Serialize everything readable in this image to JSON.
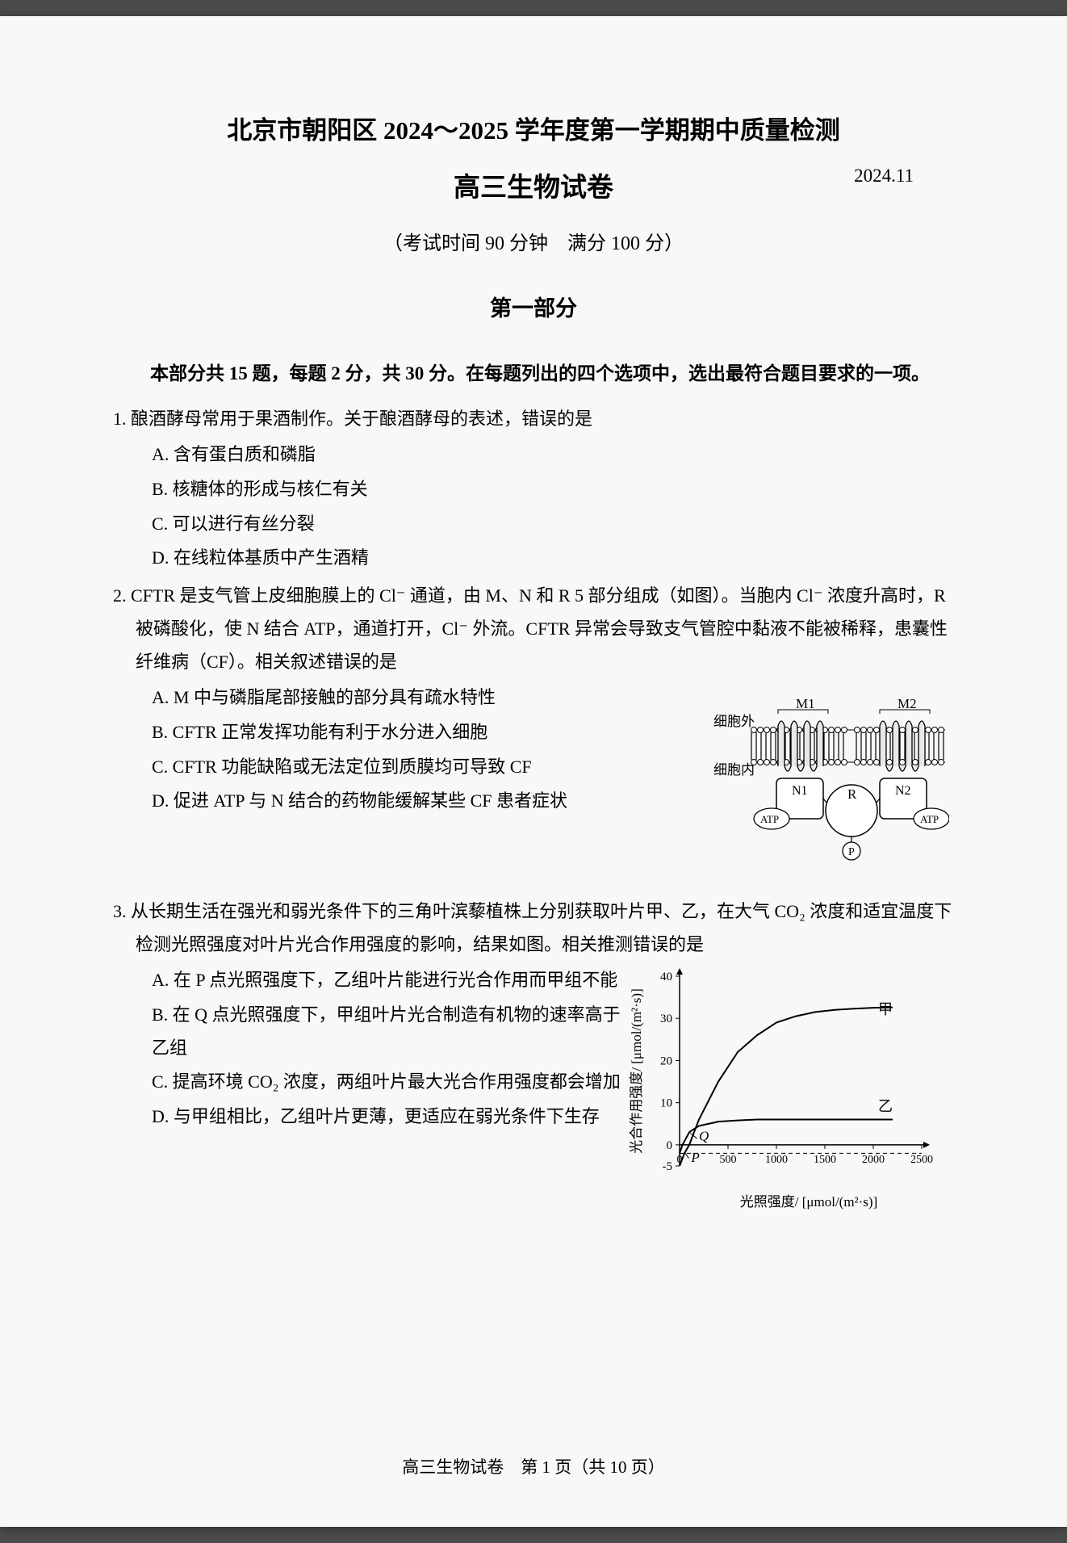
{
  "header": {
    "title": "北京市朝阳区 2024～2025 学年度第一学期期中质量检测",
    "subtitle": "高三生物试卷",
    "date": "2024.11",
    "exam_info": "（考试时间 90 分钟　满分 100 分）",
    "section": "第一部分"
  },
  "instructions": "本部分共 15 题，每题 2 分，共 30 分。在每题列出的四个选项中，选出最符合题目要求的一项。",
  "q1": {
    "num": "1.",
    "text": "酿酒酵母常用于果酒制作。关于酿酒酵母的表述，错误的是",
    "A": "A. 含有蛋白质和磷脂",
    "B": "B. 核糖体的形成与核仁有关",
    "C": "C. 可以进行有丝分裂",
    "D": "D. 在线粒体基质中产生酒精"
  },
  "q2": {
    "num": "2.",
    "text": "CFTR 是支气管上皮细胞膜上的 Cl⁻ 通道，由 M、N 和 R 5 部分组成（如图）。当胞内 Cl⁻ 浓度升高时，R 被磷酸化，使 N 结合 ATP，通道打开，Cl⁻ 外流。CFTR 异常会导致支气管腔中黏液不能被稀释，患囊性纤维病（CF）。相关叙述错误的是",
    "A": "A. M 中与磷脂尾部接触的部分具有疏水特性",
    "B": "B. CFTR 正常发挥功能有利于水分进入细胞",
    "C": "C. CFTR 功能缺陷或无法定位到质膜均可导致 CF",
    "D": "D. 促进 ATP 与 N 结合的药物能缓解某些 CF 患者症状",
    "diagram": {
      "label_out": "细胞外",
      "label_in": "细胞内",
      "M1": "M1",
      "M2": "M2",
      "N1": "N1",
      "N2": "N2",
      "R": "R",
      "ATP": "ATP",
      "P": "P",
      "membrane_color": "#000000",
      "box_color": "#ffffff"
    }
  },
  "q3": {
    "num": "3.",
    "intro": "从长期生活在强光和弱光条件下的三角叶滨藜植株上分别获取叶片甲、乙，在大气 CO₂ 浓度和适宜温度下检测光照强度对叶片光合作用强度的影响，结果如图。相关推测错误的是",
    "A": "A. 在 P 点光照强度下，乙组叶片能进行光合作用而甲组不能",
    "B": "B. 在 Q 点光照强度下，甲组叶片光合制造有机物的速率高于乙组",
    "C": "C. 提高环境 CO₂ 浓度，两组叶片最大光合作用强度都会增加",
    "D": "D. 与甲组相比，乙组叶片更薄，更适应在弱光条件下生存",
    "chart": {
      "type": "line",
      "xlabel": "光照强度/ [μmol/(m²·s)]",
      "ylabel": "光合作用强度/ [μmol/(m²·s)]",
      "xlim": [
        0,
        2500
      ],
      "ylim": [
        -5,
        40
      ],
      "xticks": [
        0,
        500,
        1000,
        1500,
        2000,
        2500
      ],
      "yticks": [
        -5,
        0,
        10,
        20,
        30,
        40
      ],
      "series_jia": {
        "label": "甲",
        "color": "#000000",
        "points": [
          [
            0,
            -5
          ],
          [
            50,
            -2
          ],
          [
            100,
            0
          ],
          [
            200,
            6
          ],
          [
            400,
            15
          ],
          [
            600,
            22
          ],
          [
            800,
            26
          ],
          [
            1000,
            29
          ],
          [
            1200,
            30.5
          ],
          [
            1400,
            31.5
          ],
          [
            1600,
            32
          ],
          [
            1800,
            32.3
          ],
          [
            2000,
            32.5
          ],
          [
            2200,
            32.6
          ]
        ]
      },
      "series_yi": {
        "label": "乙",
        "color": "#000000",
        "points": [
          [
            0,
            -2
          ],
          [
            30,
            0
          ],
          [
            100,
            3
          ],
          [
            200,
            4.5
          ],
          [
            400,
            5.5
          ],
          [
            600,
            5.8
          ],
          [
            800,
            6
          ],
          [
            1000,
            6
          ],
          [
            1500,
            6
          ],
          [
            2000,
            6
          ],
          [
            2200,
            6
          ]
        ]
      },
      "dashed_line_y": -2,
      "label_P": "P",
      "label_Q": "Q",
      "P_pos": [
        120,
        -4
      ],
      "Q_pos": [
        200,
        1
      ],
      "background_color": "#ffffff",
      "axis_color": "#000000",
      "line_width": 2,
      "label_fontsize": 18
    }
  },
  "footer": {
    "text": "高三生物试卷　第 1 页（共 10 页）"
  }
}
